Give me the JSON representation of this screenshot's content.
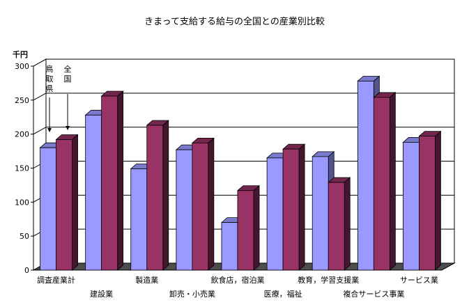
{
  "chart_data": {
    "type": "bar",
    "title": "きまって支給する給与の全国との産業別比較",
    "ylabel": "千円",
    "ylim": [
      0,
      300
    ],
    "yticks": [
      0,
      50,
      100,
      150,
      200,
      250,
      300
    ],
    "categories": [
      "調査産業計",
      "建設業",
      "製造業",
      "卸売・小売業",
      "飲食店，宿泊業",
      "医療，福祉",
      "教育，学習支援業",
      "複合サービス事業",
      "サービス業"
    ],
    "series": [
      {
        "name": "鳥取県",
        "color": "#9999ff",
        "values": [
          180,
          228,
          149,
          177,
          70,
          165,
          167,
          278,
          188
        ]
      },
      {
        "name": "全国",
        "color": "#993366",
        "values": [
          192,
          256,
          213,
          187,
          117,
          178,
          129,
          254,
          197
        ]
      }
    ],
    "annotations": [
      "鳥取県",
      "全国"
    ],
    "grid": true
  }
}
